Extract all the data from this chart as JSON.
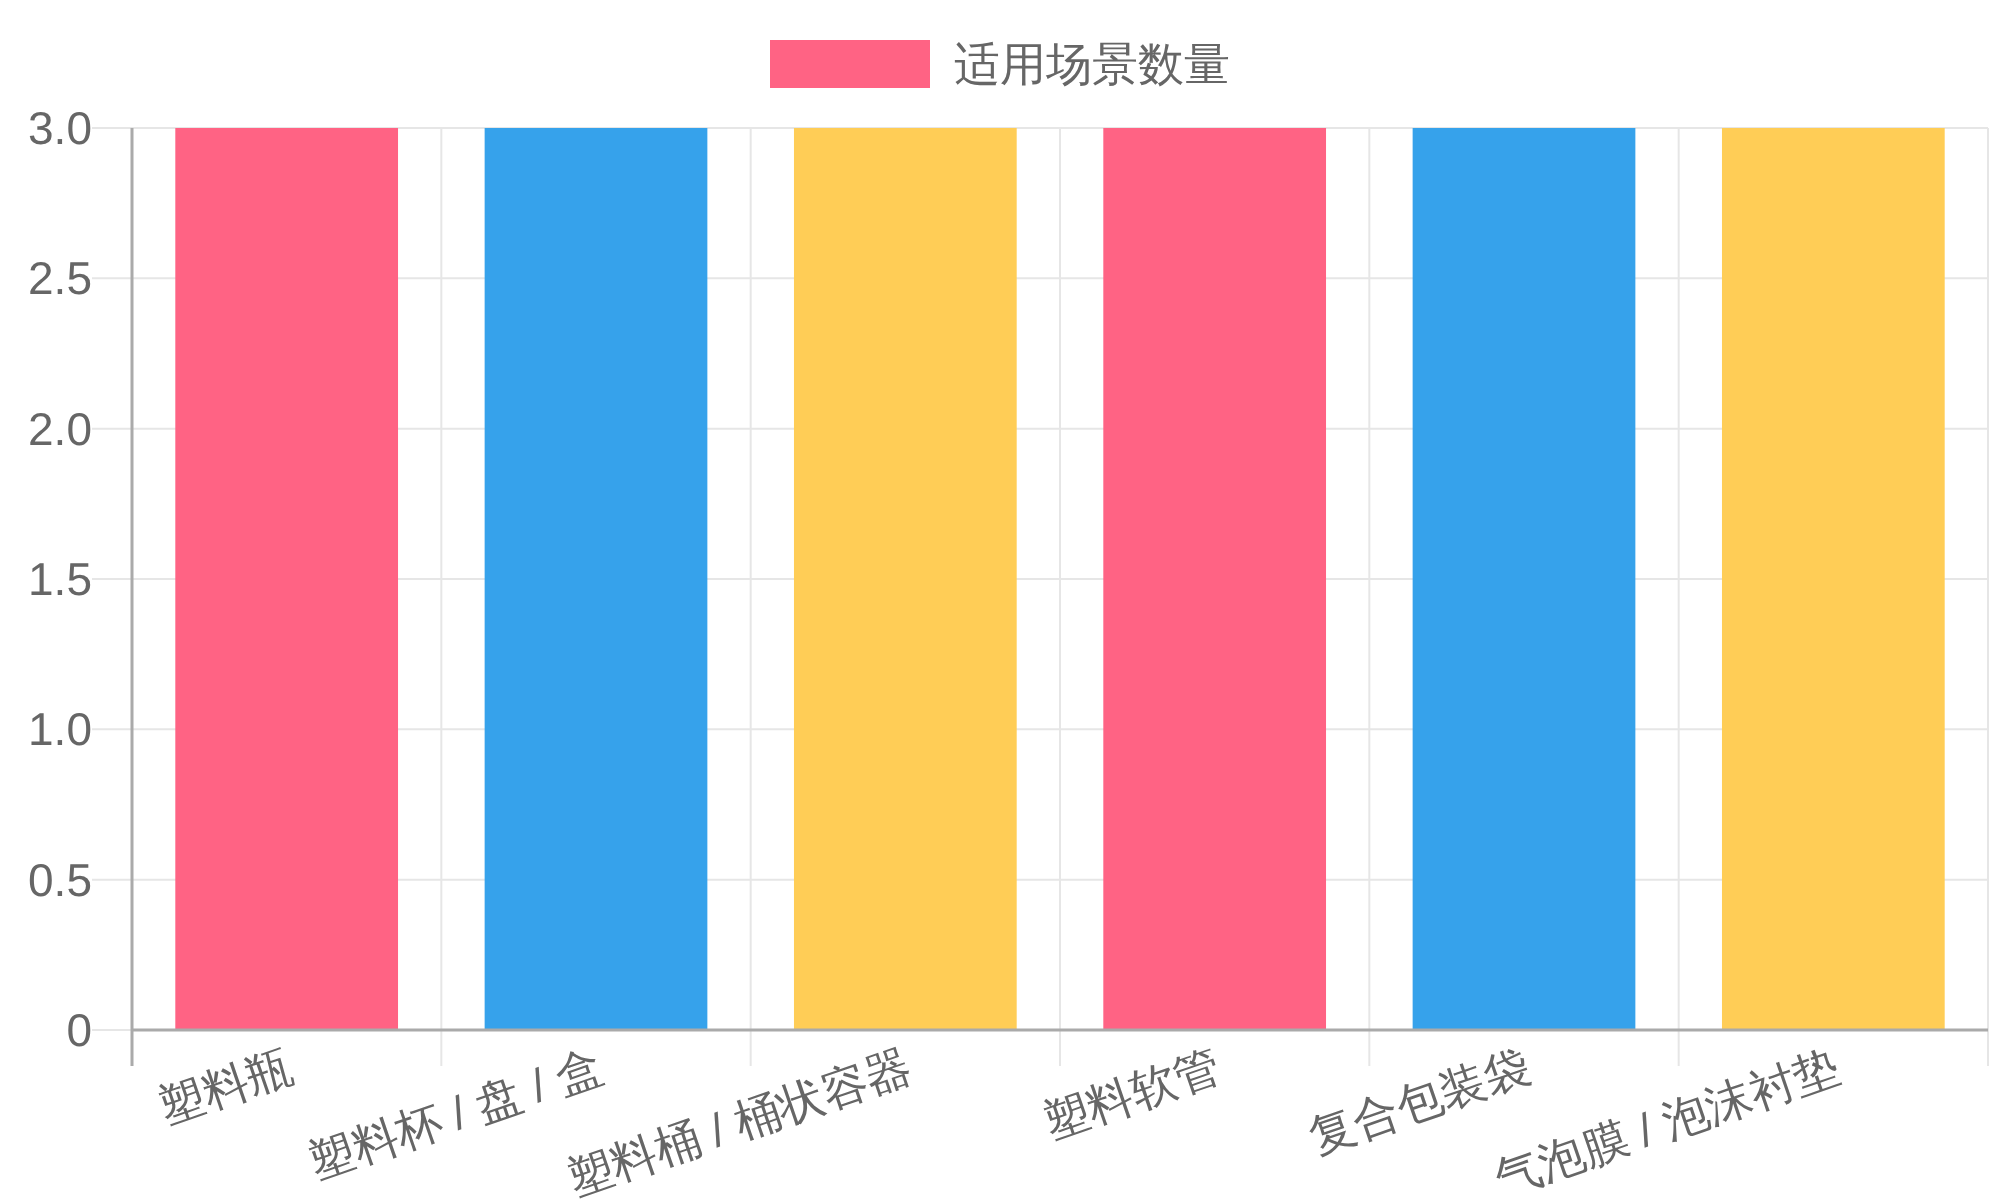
{
  "chart_data": {
    "type": "bar",
    "categories": [
      "塑料瓶",
      "塑料杯 / 盘 / 盒",
      "塑料桶 / 桶状容器",
      "塑料软管",
      "复合包装袋",
      "气泡膜 / 泡沫衬垫"
    ],
    "series": [
      {
        "name": "适用场景数量",
        "colors": [
          "#ff6384",
          "#36a2eb",
          "#ffcd56",
          "#ff6384",
          "#36a2eb",
          "#ffcd56"
        ],
        "values": [
          3,
          3,
          3,
          3,
          3,
          3
        ]
      }
    ],
    "ylim": [
      0,
      3
    ],
    "yticks": [
      0,
      0.5,
      {
        "value": 1,
        "label": "1.0"
      },
      1.5,
      {
        "value": 2,
        "label": "2.0"
      },
      2.5,
      {
        "value": 3,
        "label": "3.0"
      }
    ],
    "grid": true,
    "legend": "top"
  }
}
